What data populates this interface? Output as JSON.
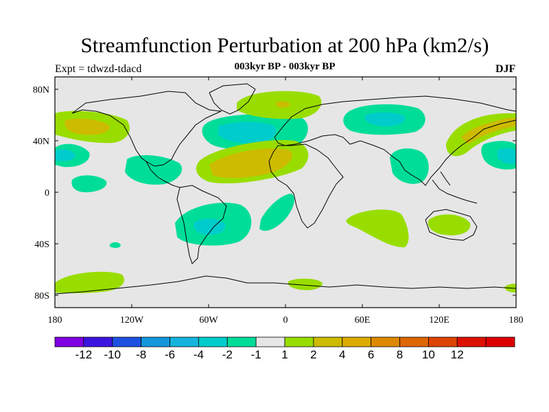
{
  "title": "Streamfunction Perturbation at 200 hPa (km2/s)",
  "left_label": "Expt = tdwzd-tdacd",
  "center_label": "003kyr BP - 003kyr BP",
  "right_label": "DJF",
  "colors": {
    "background": "#e6e6e6",
    "neg3": "#00ddcc",
    "neg2": "#00cccc",
    "neg1": "#00dd99",
    "pos1": "#99dd00",
    "pos2": "#ccbb00"
  },
  "x_ticks": [
    "180",
    "120W",
    "60W",
    "0",
    "60E",
    "120E",
    "180"
  ],
  "y_ticks": [
    "80N",
    "40N",
    "0",
    "40S",
    "80S"
  ],
  "colorbar": {
    "colors": [
      "#7f00e0",
      "#3c14e0",
      "#1e50e0",
      "#1496dc",
      "#14b4dc",
      "#00cccc",
      "#00dd99",
      "#e6e6e6",
      "#99dd00",
      "#ccbb00",
      "#ddaa00",
      "#dd8800",
      "#dd6600",
      "#dd4400",
      "#dd1100",
      "#dd0000"
    ],
    "labels": [
      "-12",
      "-10",
      "-8",
      "-6",
      "-4",
      "-2",
      "-1",
      "1",
      "2",
      "4",
      "6",
      "8",
      "10",
      "12"
    ]
  }
}
